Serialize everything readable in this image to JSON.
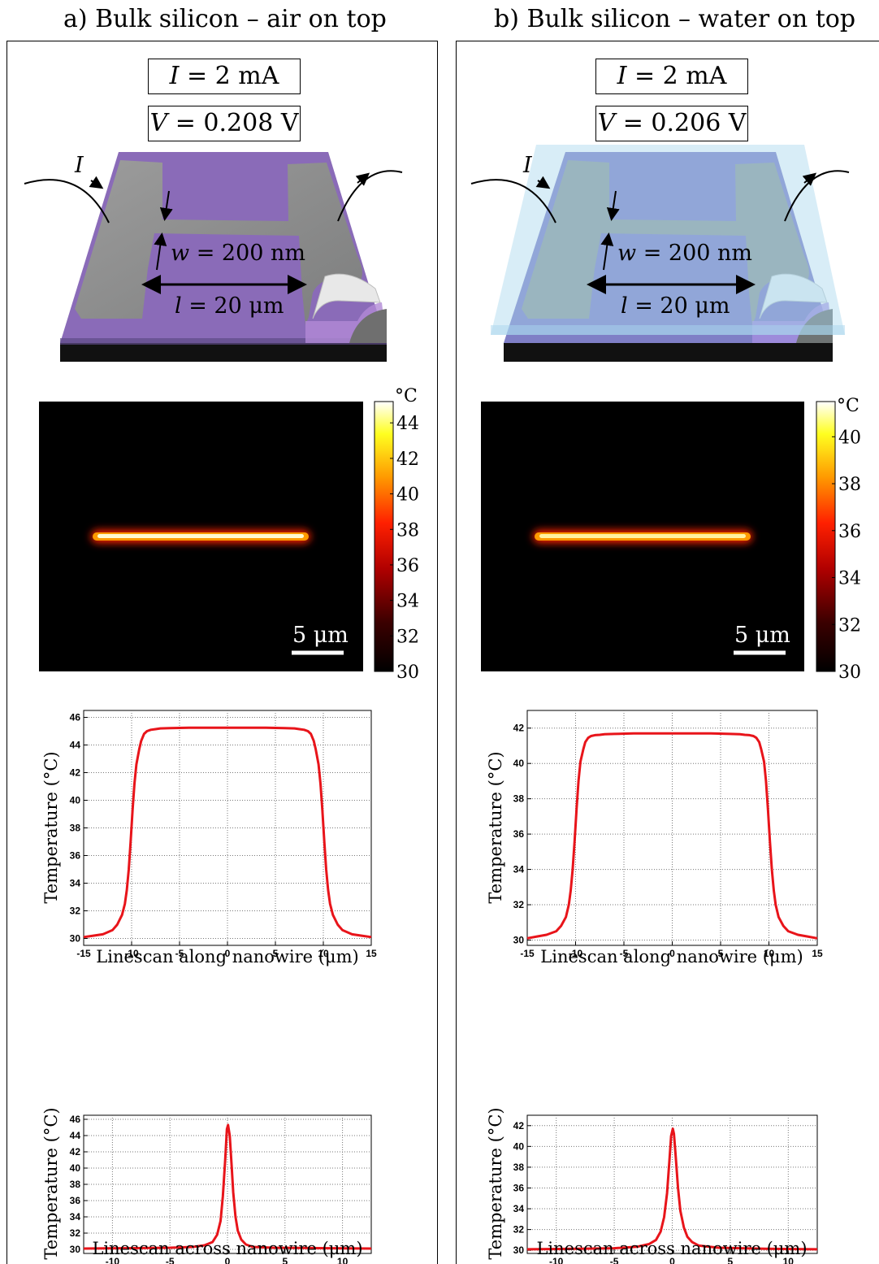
{
  "panels": [
    {
      "title": "a)  Bulk silicon – air on top",
      "current_label": "I = 2 mA",
      "current_var": "I",
      "current_val": " = 2 mA",
      "voltage_var": "V",
      "voltage_val": " = 0.208 V",
      "current_arrow_label": "I",
      "width_label": "w",
      "width_val": " = 200 nm",
      "length_label": "l",
      "length_val": " = 20 μm",
      "scalebar_label": "5 μm",
      "colorbar_unit": "°C",
      "colorbar_ticks": [
        "44",
        "42",
        "40",
        "38",
        "36",
        "34",
        "32",
        "30"
      ],
      "overlay": "air",
      "colors": {
        "substrate_top": "#8a6bb8",
        "wire": "#8f9090",
        "overlay": "none"
      }
    },
    {
      "title": "b)  Bulk silicon – water on top",
      "current_var": "I",
      "current_val": " = 2 mA",
      "voltage_var": "V",
      "voltage_val": " = 0.206 V",
      "current_arrow_label": "I",
      "width_label": "w",
      "width_val": " = 200 nm",
      "length_label": "l",
      "length_val": " = 20 μm",
      "scalebar_label": "5 μm",
      "colorbar_unit": "°C",
      "colorbar_ticks": [
        "40",
        "38",
        "36",
        "34",
        "32",
        "30"
      ],
      "overlay": "water",
      "colors": {
        "substrate_top": "#7f7fc6",
        "wire": "#8f9a9a",
        "overlay": "#a9d6ee"
      }
    }
  ],
  "chart_data": [
    {
      "type": "line",
      "panel": "a",
      "kind": "along",
      "xlabel": "Linescan along nanowire (μm)",
      "ylabel": "Temperature (°C)",
      "xlim": [
        -15,
        15
      ],
      "ylim": [
        29.5,
        46.5
      ],
      "xticks": [
        "-15",
        "-10",
        "-5",
        "0",
        "5",
        "10",
        "15"
      ],
      "yticks": [
        "30",
        "32",
        "34",
        "36",
        "38",
        "40",
        "42",
        "44",
        "46"
      ],
      "series": [
        {
          "color": "#e8141a",
          "x": [
            -15,
            -14,
            -13,
            -12,
            -11.5,
            -11,
            -10.7,
            -10.5,
            -10.3,
            -10.1,
            -9.9,
            -9.7,
            -9.5,
            -9.2,
            -9,
            -8.7,
            -8.4,
            -8,
            -7.5,
            -7,
            -6,
            -4,
            -2,
            0,
            2,
            4,
            6,
            7,
            7.5,
            8,
            8.4,
            8.7,
            9,
            9.2,
            9.5,
            9.7,
            9.9,
            10.1,
            10.3,
            10.5,
            10.7,
            11,
            11.5,
            12,
            13,
            14,
            15
          ],
          "y": [
            30.1,
            30.2,
            30.3,
            30.6,
            31.0,
            31.7,
            32.5,
            33.5,
            35.0,
            37.0,
            39.3,
            41.2,
            42.6,
            43.7,
            44.3,
            44.8,
            45.0,
            45.1,
            45.15,
            45.2,
            45.22,
            45.25,
            45.25,
            45.25,
            45.25,
            45.25,
            45.22,
            45.2,
            45.15,
            45.1,
            45.0,
            44.8,
            44.3,
            43.7,
            42.6,
            41.2,
            39.3,
            37.0,
            35.0,
            33.5,
            32.5,
            31.7,
            31.0,
            30.6,
            30.3,
            30.2,
            30.1
          ]
        }
      ]
    },
    {
      "type": "line",
      "panel": "a",
      "kind": "across",
      "xlabel": "Linescan across nanowire (μm)",
      "ylabel": "Temperature (°C)",
      "xlim": [
        -12.5,
        12.5
      ],
      "ylim": [
        29.5,
        46.5
      ],
      "xticks": [
        "-10",
        "-5",
        "0",
        "5",
        "10"
      ],
      "yticks": [
        "30",
        "32",
        "34",
        "36",
        "38",
        "40",
        "42",
        "44",
        "46"
      ],
      "series": [
        {
          "color": "#e8141a",
          "x": [
            -12.5,
            -8,
            -5,
            -3,
            -2,
            -1.3,
            -0.9,
            -0.6,
            -0.4,
            -0.2,
            -0.05,
            0.05,
            0.2,
            0.35,
            0.5,
            0.7,
            0.9,
            1.2,
            1.6,
            2.2,
            4,
            8,
            12.5
          ],
          "y": [
            30.1,
            30.15,
            30.2,
            30.3,
            30.5,
            30.9,
            31.8,
            33.5,
            36.5,
            41.0,
            44.8,
            45.3,
            44.0,
            40.5,
            37.0,
            34.0,
            32.3,
            31.2,
            30.6,
            30.3,
            30.2,
            30.15,
            30.1
          ]
        }
      ]
    },
    {
      "type": "line",
      "panel": "b",
      "kind": "along",
      "xlabel": "Linescan along nanowire (μm)",
      "ylabel": "Temperature (°C)",
      "xlim": [
        -15,
        15
      ],
      "ylim": [
        29.7,
        43
      ],
      "xticks": [
        "-15",
        "-10",
        "-5",
        "0",
        "5",
        "10",
        "15"
      ],
      "yticks": [
        "30",
        "32",
        "34",
        "36",
        "38",
        "40",
        "42"
      ],
      "series": [
        {
          "color": "#e8141a",
          "x": [
            -15,
            -14,
            -13,
            -12,
            -11.5,
            -11,
            -10.7,
            -10.5,
            -10.3,
            -10.1,
            -9.9,
            -9.7,
            -9.5,
            -9.2,
            -9,
            -8.7,
            -8.4,
            -8,
            -7.5,
            -7,
            -6,
            -4,
            -2,
            0,
            2,
            4,
            6,
            7,
            7.5,
            8,
            8.4,
            8.7,
            9,
            9.2,
            9.5,
            9.7,
            9.9,
            10.1,
            10.3,
            10.5,
            10.7,
            11,
            11.5,
            12,
            13,
            14,
            15
          ],
          "y": [
            30.1,
            30.2,
            30.3,
            30.5,
            30.8,
            31.3,
            32.0,
            32.8,
            34.0,
            35.6,
            37.4,
            39.0,
            40.1,
            40.8,
            41.2,
            41.45,
            41.55,
            41.6,
            41.62,
            41.65,
            41.67,
            41.7,
            41.7,
            41.7,
            41.7,
            41.7,
            41.67,
            41.65,
            41.62,
            41.6,
            41.55,
            41.45,
            41.2,
            40.8,
            40.1,
            39.0,
            37.4,
            35.6,
            34.0,
            32.8,
            32.0,
            31.3,
            30.8,
            30.5,
            30.3,
            30.2,
            30.1
          ]
        }
      ]
    },
    {
      "type": "line",
      "panel": "b",
      "kind": "across",
      "xlabel": "Linescan across nanowire (μm)",
      "ylabel": "Temperature (°C)",
      "xlim": [
        -12.5,
        12.5
      ],
      "ylim": [
        29.7,
        43
      ],
      "xticks": [
        "-10",
        "-5",
        "0",
        "5",
        "10"
      ],
      "yticks": [
        "30",
        "32",
        "34",
        "36",
        "38",
        "40",
        "42"
      ],
      "series": [
        {
          "color": "#e8141a",
          "x": [
            -12.5,
            -8,
            -5,
            -3,
            -2,
            -1.4,
            -1.0,
            -0.7,
            -0.45,
            -0.25,
            -0.1,
            0.05,
            0.15,
            0.3,
            0.5,
            0.7,
            1.0,
            1.3,
            1.7,
            2.3,
            4,
            8,
            12.5
          ],
          "y": [
            30.1,
            30.15,
            30.2,
            30.35,
            30.6,
            31.0,
            31.8,
            33.2,
            35.5,
            38.5,
            41.0,
            41.7,
            41.2,
            39.0,
            36.0,
            33.8,
            32.2,
            31.3,
            30.8,
            30.45,
            30.25,
            30.15,
            30.1
          ]
        }
      ]
    }
  ]
}
